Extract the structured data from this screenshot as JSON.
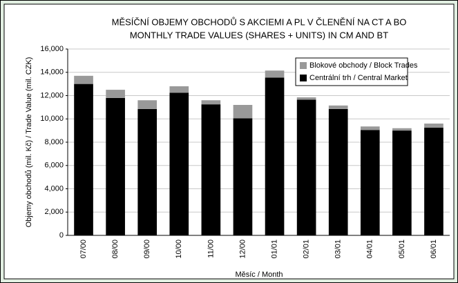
{
  "chart_data": {
    "type": "stacked_bar",
    "title": "MĚSÍČNÍ OBJEMY OBCHODŮ S AKCIEMI A PL V ČLENĚNÍ NA CT A BO",
    "subtitle": "MONTHLY TRADE VALUES (SHARES + UNITS) IN CM AND BT",
    "x_label": "Měsíc / Month",
    "y_label": "Objemy obchodů (mil. Kč) / Trade Value (mil. CZK)",
    "categories": [
      "07/00",
      "08/00",
      "09/00",
      "10/00",
      "11/00",
      "12/00",
      "01/01",
      "02/01",
      "03/01",
      "04/01",
      "05/01",
      "06/01"
    ],
    "series": [
      {
        "name": "Centrální trh / Central Market",
        "color": "#000000",
        "values": [
          13000,
          11800,
          10850,
          12250,
          11250,
          10050,
          13550,
          11650,
          10850,
          9050,
          9000,
          9250
        ]
      },
      {
        "name": "Blokové obchody / Block Trades",
        "color": "#999999",
        "values": [
          700,
          700,
          750,
          550,
          350,
          1150,
          600,
          200,
          300,
          300,
          200,
          350
        ]
      }
    ],
    "ylim": [
      0,
      16000
    ],
    "yticks": [
      0,
      {
        "value": 2000,
        "label": "2,000"
      },
      {
        "value": 4000,
        "label": "4,000"
      },
      {
        "value": 6000,
        "label": "6,000"
      },
      {
        "value": 8000,
        "label": "8,000"
      },
      {
        "value": 10000,
        "label": "10,000"
      },
      {
        "value": 12000,
        "label": "12,000"
      },
      {
        "value": 14000,
        "label": "14,000"
      },
      {
        "value": 16000,
        "label": "16,000"
      }
    ],
    "grid": true,
    "legend": "upper right"
  }
}
